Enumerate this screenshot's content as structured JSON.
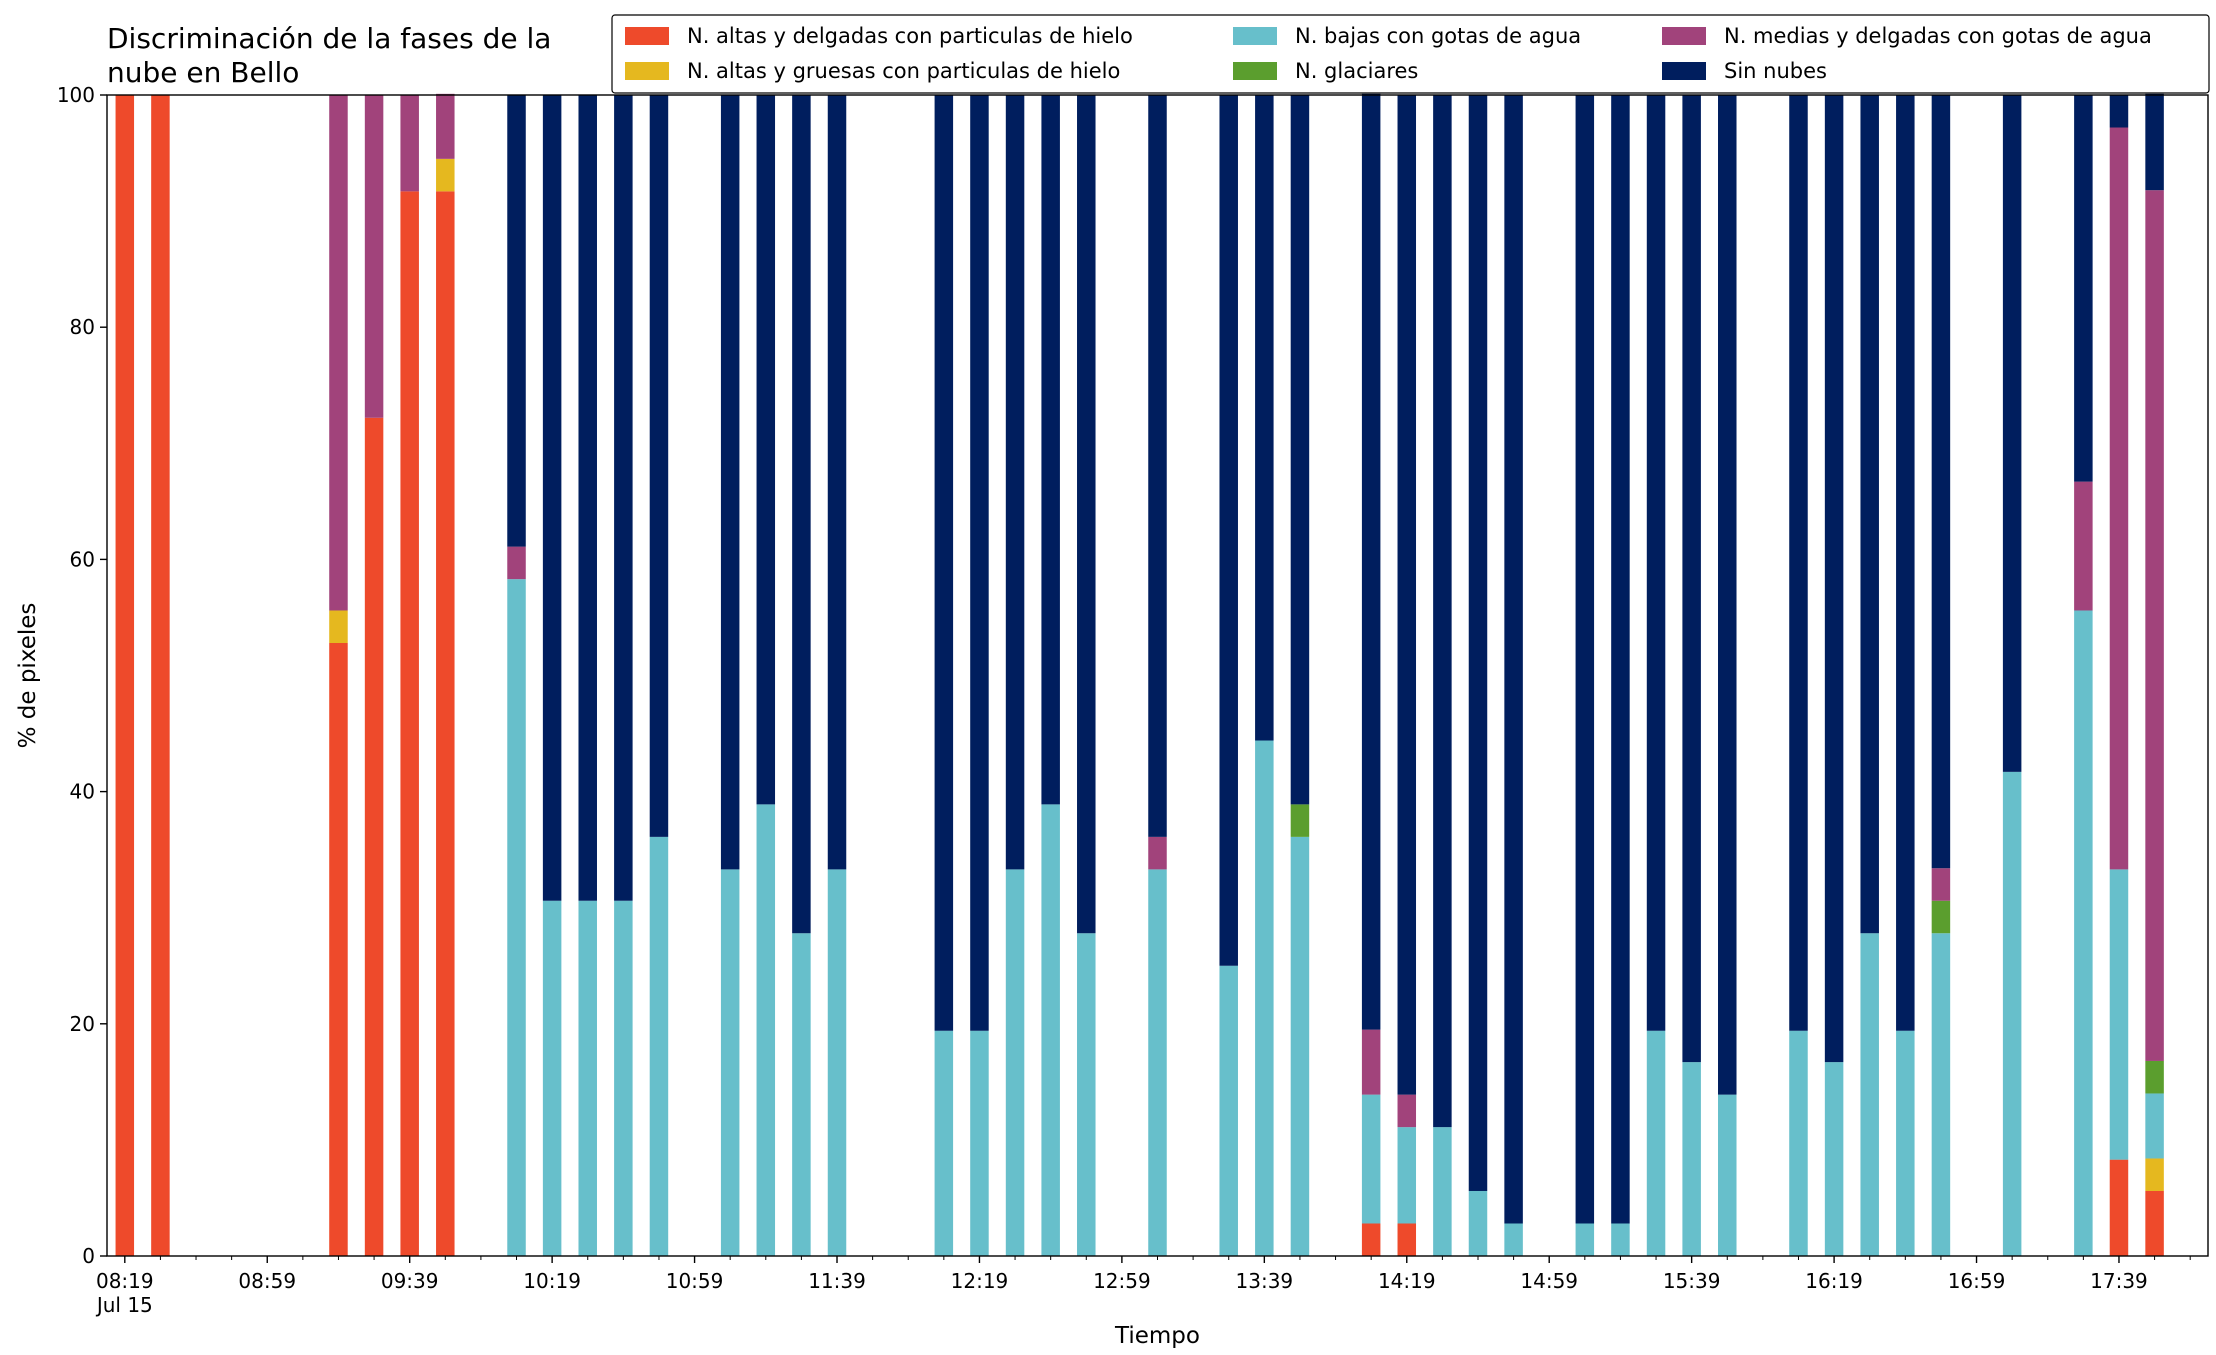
{
  "chart_data": {
    "type": "bar",
    "stacked": true,
    "title": "Discriminación de la fases de la nube en Bello",
    "x_label": "Tiempo",
    "y_label": "% de pixeles",
    "x_sublabel": "Jul 15",
    "x": [
      "08:19",
      "08:29",
      "09:19",
      "09:29",
      "09:39",
      "09:49",
      "10:09",
      "10:19",
      "10:29",
      "10:39",
      "10:49",
      "11:09",
      "11:19",
      "11:29",
      "11:39",
      "12:09",
      "12:19",
      "12:29",
      "12:39",
      "12:49",
      "13:09",
      "13:29",
      "13:39",
      "13:49",
      "14:09",
      "14:19",
      "14:29",
      "14:39",
      "14:49",
      "15:09",
      "15:19",
      "15:29",
      "15:39",
      "15:49",
      "16:09",
      "16:19",
      "16:29",
      "16:39",
      "16:49",
      "17:09",
      "17:29",
      "17:39",
      "17:49"
    ],
    "series": [
      {
        "name": "N. altas y delgadas con particulas de hielo",
        "color": "#ee4a2b",
        "values": [
          100,
          100,
          52.8,
          72.2,
          91.7,
          91.7,
          0,
          0,
          0,
          0,
          0,
          0,
          0,
          0,
          0,
          0,
          0,
          0,
          0,
          0,
          0,
          0,
          0,
          0,
          2.8,
          2.8,
          0,
          0,
          0,
          0,
          0,
          0,
          0,
          0,
          0,
          0,
          0,
          0,
          0,
          0,
          0,
          8.3,
          5.6
        ]
      },
      {
        "name": "N. altas y gruesas con particulas de hielo",
        "color": "#e5b81f",
        "values": [
          0,
          0,
          2.8,
          0,
          0,
          2.8,
          0,
          0,
          0,
          0,
          0,
          0,
          0,
          0,
          0,
          0,
          0,
          0,
          0,
          0,
          0,
          0,
          0,
          0,
          0,
          0,
          0,
          0,
          0,
          0,
          0,
          0,
          0,
          0,
          0,
          0,
          0,
          0,
          0,
          0,
          0,
          0,
          2.8
        ]
      },
      {
        "name": "N. bajas con gotas de agua",
        "color": "#67bfcb",
        "values": [
          0,
          0,
          0,
          0,
          0,
          0,
          58.3,
          30.6,
          30.6,
          30.6,
          36.1,
          33.3,
          38.9,
          27.8,
          33.3,
          19.4,
          19.4,
          33.3,
          38.9,
          27.8,
          33.3,
          25,
          44.4,
          36.1,
          11.1,
          8.3,
          11.1,
          5.6,
          2.8,
          2.8,
          2.8,
          19.4,
          16.7,
          13.9,
          19.4,
          16.7,
          27.8,
          19.4,
          27.8,
          41.7,
          55.6,
          25,
          5.6
        ]
      },
      {
        "name": "N. glaciares",
        "color": "#5b9e2e",
        "values": [
          0,
          0,
          0,
          0,
          0,
          0,
          0,
          0,
          0,
          0,
          0,
          0,
          0,
          0,
          0,
          0,
          0,
          0,
          0,
          0,
          0,
          0,
          0,
          2.8,
          0,
          0,
          0,
          0,
          0,
          0,
          0,
          0,
          0,
          0,
          0,
          0,
          0,
          0,
          2.8,
          0,
          0,
          0,
          2.8
        ]
      },
      {
        "name": "N. medias y delgadas con gotas de agua",
        "color": "#a1437b",
        "values": [
          0,
          0,
          44.4,
          27.8,
          8.3,
          5.6,
          2.8,
          0,
          0,
          0,
          0,
          0,
          0,
          0,
          0,
          0,
          0,
          0,
          0,
          0,
          2.8,
          0,
          0,
          0,
          5.6,
          2.8,
          0,
          0,
          0,
          0,
          0,
          0,
          0,
          0,
          0,
          0,
          0,
          0,
          2.8,
          0,
          11.1,
          63.9,
          75
        ]
      },
      {
        "name": "Sin nubes",
        "color": "#001e5e",
        "values": [
          0,
          0,
          0,
          0,
          0,
          0,
          38.9,
          69.4,
          69.4,
          69.4,
          63.9,
          66.7,
          61.1,
          72.2,
          66.7,
          80.6,
          80.6,
          66.7,
          61.1,
          72.2,
          63.9,
          75,
          55.6,
          61.1,
          80.6,
          86.1,
          88.9,
          94.4,
          97.2,
          97.2,
          97.2,
          80.6,
          83.3,
          86.1,
          80.6,
          83.3,
          72.2,
          80.6,
          66.6,
          58.3,
          33.3,
          2.8,
          8.3
        ]
      }
    ],
    "xlim": [
      "08:14",
      "18:04"
    ],
    "xticks": [
      "08:19",
      "08:59",
      "09:39",
      "10:19",
      "10:59",
      "11:39",
      "12:19",
      "12:59",
      "13:39",
      "14:19",
      "14:59",
      "15:39",
      "16:19",
      "16:59",
      "17:39"
    ],
    "xminorticks": [
      "08:29",
      "08:39",
      "08:49",
      "09:09",
      "09:19",
      "09:29",
      "09:49",
      "09:59",
      "10:09",
      "10:29",
      "10:39",
      "10:49",
      "11:09",
      "11:19",
      "11:29",
      "11:49",
      "11:59",
      "12:09",
      "12:29",
      "12:39",
      "12:49",
      "13:09",
      "13:19",
      "13:29",
      "13:49",
      "13:59",
      "14:09",
      "14:29",
      "14:39",
      "14:49",
      "15:09",
      "15:19",
      "15:29",
      "15:49",
      "15:59",
      "16:09",
      "16:29",
      "16:39",
      "16:49",
      "17:09",
      "17:19",
      "17:29",
      "17:49",
      "17:59"
    ],
    "ylim": [
      0,
      100
    ],
    "yticks": [
      0,
      20,
      40,
      60,
      80,
      100
    ],
    "legend": "upper right",
    "legend_columns": 3,
    "grid": false
  }
}
